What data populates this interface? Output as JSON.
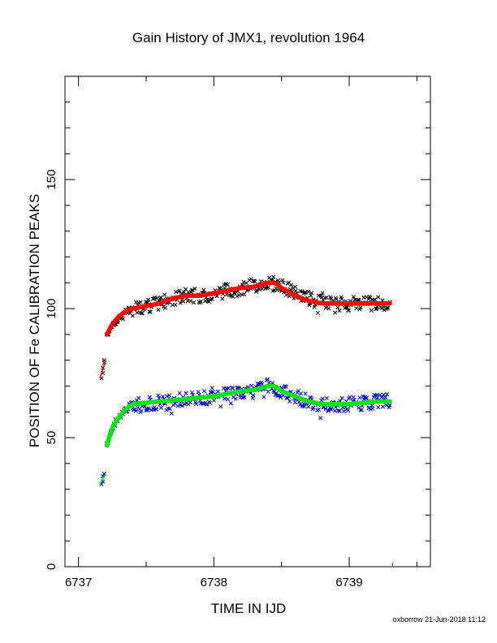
{
  "chart_data": {
    "type": "scatter",
    "title": "Gain History of JMX1, revolution 1964",
    "xlabel": "TIME IN IJD",
    "ylabel": "POSITION OF Fe CALIBRATION PEAKS",
    "xlim": [
      6736.9,
      6739.6
    ],
    "ylim": [
      0,
      190
    ],
    "x_ticks": [
      "6737",
      "6738",
      "6739"
    ],
    "y_ticks": [
      "0",
      "50",
      "100",
      "150"
    ],
    "grid": false,
    "legend": "none",
    "footer": "oxborrow 21-Jun-2018 11:12",
    "series": [
      {
        "marker": "x",
        "color": "#000000",
        "start": [
          [
            6737.17,
            73
          ],
          [
            6737.18,
            75
          ],
          [
            6737.18,
            77
          ],
          [
            6737.19,
            79
          ],
          [
            6737.19,
            80
          ]
        ],
        "data": [
          [
            6737.21,
            90
          ],
          [
            6737.25,
            93
          ],
          [
            6737.3,
            96
          ],
          [
            6737.35,
            99
          ],
          [
            6737.4,
            100
          ],
          [
            6737.5,
            101
          ],
          [
            6737.6,
            102
          ],
          [
            6737.7,
            104
          ],
          [
            6737.8,
            105
          ],
          [
            6737.9,
            105
          ],
          [
            6738.0,
            106
          ],
          [
            6738.1,
            107
          ],
          [
            6738.2,
            108
          ],
          [
            6738.3,
            109
          ],
          [
            6738.4,
            110
          ],
          [
            6738.5,
            109
          ],
          [
            6738.6,
            106
          ],
          [
            6738.7,
            104
          ],
          [
            6738.8,
            102
          ],
          [
            6738.9,
            102
          ],
          [
            6739.0,
            102
          ],
          [
            6739.1,
            102
          ],
          [
            6739.2,
            102
          ],
          [
            6739.3,
            102
          ]
        ]
      },
      {
        "marker": "x",
        "color": "#0000cc",
        "start": [
          [
            6737.17,
            32
          ],
          [
            6737.18,
            33
          ],
          [
            6737.18,
            35
          ],
          [
            6737.19,
            36
          ]
        ],
        "data": [
          [
            6737.21,
            47
          ],
          [
            6737.25,
            54
          ],
          [
            6737.3,
            58
          ],
          [
            6737.35,
            61
          ],
          [
            6737.4,
            63
          ],
          [
            6737.5,
            63
          ],
          [
            6737.6,
            64
          ],
          [
            6737.7,
            64
          ],
          [
            6737.8,
            65
          ],
          [
            6737.9,
            65
          ],
          [
            6738.0,
            66
          ],
          [
            6738.1,
            67
          ],
          [
            6738.2,
            68
          ],
          [
            6738.3,
            68
          ],
          [
            6738.4,
            70
          ],
          [
            6738.5,
            68
          ],
          [
            6738.6,
            66
          ],
          [
            6738.7,
            64
          ],
          [
            6738.8,
            63
          ],
          [
            6738.9,
            63
          ],
          [
            6739.0,
            63
          ],
          [
            6739.1,
            63
          ],
          [
            6739.2,
            64
          ],
          [
            6739.3,
            64
          ]
        ]
      }
    ],
    "fits": [
      {
        "color": "#ff0000",
        "note": "upper smooth fit",
        "points": [
          [
            6737.21,
            90
          ],
          [
            6737.25,
            94
          ],
          [
            6737.3,
            97
          ],
          [
            6737.35,
            99
          ],
          [
            6737.4,
            100
          ],
          [
            6737.5,
            101
          ],
          [
            6737.6,
            102
          ],
          [
            6737.7,
            104
          ],
          [
            6737.8,
            105
          ],
          [
            6737.9,
            105
          ],
          [
            6738.0,
            106
          ],
          [
            6738.1,
            107
          ],
          [
            6738.2,
            108
          ],
          [
            6738.3,
            108.5
          ],
          [
            6738.4,
            110
          ],
          [
            6738.45,
            110
          ],
          [
            6738.5,
            108
          ],
          [
            6738.6,
            105
          ],
          [
            6738.7,
            103
          ],
          [
            6738.8,
            102
          ],
          [
            6738.9,
            102
          ],
          [
            6739.0,
            102
          ],
          [
            6739.1,
            102
          ],
          [
            6739.2,
            102
          ],
          [
            6739.3,
            102
          ]
        ]
      },
      {
        "color": "#00e600",
        "note": "lower smooth fit",
        "points": [
          [
            6737.21,
            47
          ],
          [
            6737.25,
            54
          ],
          [
            6737.3,
            58
          ],
          [
            6737.35,
            61
          ],
          [
            6737.4,
            63
          ],
          [
            6737.5,
            63.5
          ],
          [
            6737.6,
            64
          ],
          [
            6737.7,
            64.5
          ],
          [
            6737.8,
            65
          ],
          [
            6737.9,
            65.5
          ],
          [
            6738.0,
            66
          ],
          [
            6738.1,
            67
          ],
          [
            6738.2,
            68
          ],
          [
            6738.3,
            68.5
          ],
          [
            6738.4,
            70
          ],
          [
            6738.45,
            70
          ],
          [
            6738.5,
            68
          ],
          [
            6738.6,
            66
          ],
          [
            6738.7,
            64
          ],
          [
            6738.8,
            63
          ],
          [
            6738.9,
            63
          ],
          [
            6739.0,
            63
          ],
          [
            6739.1,
            63.5
          ],
          [
            6739.2,
            64
          ],
          [
            6739.3,
            64
          ]
        ]
      }
    ]
  }
}
